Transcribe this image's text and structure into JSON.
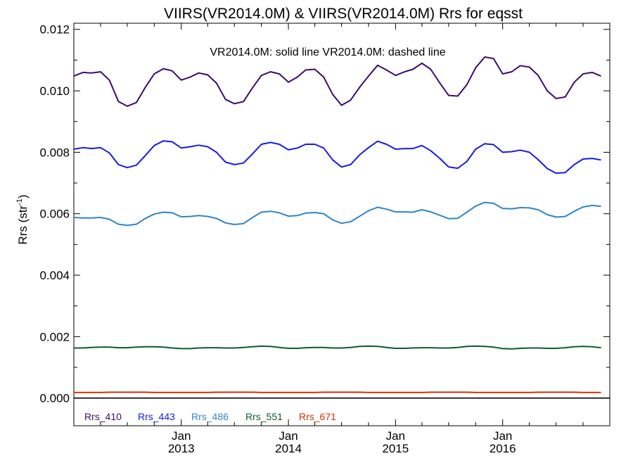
{
  "chart_data": {
    "type": "line",
    "title": "VIIRS(VR2014.0M) & VIIRS(VR2014.0M)  Rrs for eqsst",
    "annotation": "VR2014.0M: solid line   VR2014.0M: dashed line",
    "ylabel_base": "Rrs (str",
    "ylabel_exp": "-1",
    "ylabel_close": ")",
    "ylim": [
      -0.0009,
      0.0122
    ],
    "y_ticks": [
      "0.000",
      "0.002",
      "0.004",
      "0.006",
      "0.008",
      "0.010",
      "0.012"
    ],
    "xlim": [
      "2012-01-01",
      "2016-12-31"
    ],
    "x_ticks": [
      {
        "date": "2013-01-01",
        "month": "Jan",
        "year": "2013"
      },
      {
        "date": "2014-01-01",
        "month": "Jan",
        "year": "2014"
      },
      {
        "date": "2015-01-01",
        "month": "Jan",
        "year": "2015"
      },
      {
        "date": "2016-01-01",
        "month": "Jan",
        "year": "2016"
      }
    ],
    "x": [
      "2012-01-01",
      "2012-02-01",
      "2012-03-01",
      "2012-04-01",
      "2012-05-01",
      "2012-06-01",
      "2012-07-01",
      "2012-08-01",
      "2012-09-01",
      "2012-10-01",
      "2012-11-01",
      "2012-12-01",
      "2013-01-01",
      "2013-02-01",
      "2013-03-01",
      "2013-04-01",
      "2013-05-01",
      "2013-06-01",
      "2013-07-01",
      "2013-08-01",
      "2013-09-01",
      "2013-10-01",
      "2013-11-01",
      "2013-12-01",
      "2014-01-01",
      "2014-02-01",
      "2014-03-01",
      "2014-04-01",
      "2014-05-01",
      "2014-06-01",
      "2014-07-01",
      "2014-08-01",
      "2014-09-01",
      "2014-10-01",
      "2014-11-01",
      "2014-12-01",
      "2015-01-01",
      "2015-02-01",
      "2015-03-01",
      "2015-04-01",
      "2015-05-01",
      "2015-06-01",
      "2015-07-01",
      "2015-08-01",
      "2015-09-01",
      "2015-10-01",
      "2015-11-01",
      "2015-12-01",
      "2016-01-01",
      "2016-02-01",
      "2016-03-01",
      "2016-04-01",
      "2016-05-01",
      "2016-06-01",
      "2016-07-01",
      "2016-08-01",
      "2016-09-01",
      "2016-10-01",
      "2016-11-01",
      "2016-12-01"
    ],
    "series": [
      {
        "name": "Rrs_410",
        "color": "#3d0a6e",
        "values": [
          0.01048,
          0.0106,
          0.01058,
          0.01062,
          0.01035,
          0.00965,
          0.0095,
          0.00962,
          0.01012,
          0.01055,
          0.01072,
          0.01065,
          0.01035,
          0.01045,
          0.01058,
          0.01052,
          0.01025,
          0.00972,
          0.00958,
          0.00965,
          0.0101,
          0.0105,
          0.01062,
          0.01055,
          0.01028,
          0.01045,
          0.01068,
          0.0107,
          0.01045,
          0.00988,
          0.00953,
          0.0097,
          0.01012,
          0.01048,
          0.01083,
          0.01068,
          0.0105,
          0.01062,
          0.0107,
          0.0109,
          0.0107,
          0.01025,
          0.00985,
          0.00983,
          0.0102,
          0.01075,
          0.0111,
          0.01105,
          0.01055,
          0.01062,
          0.01082,
          0.01077,
          0.0105,
          0.01,
          0.00975,
          0.0098,
          0.01028,
          0.01055,
          0.0106,
          0.01048
        ]
      },
      {
        "name": "Rrs_443",
        "color": "#1a1ae6",
        "values": [
          0.0081,
          0.00815,
          0.00812,
          0.00815,
          0.00798,
          0.0076,
          0.0075,
          0.00758,
          0.0079,
          0.00822,
          0.00837,
          0.00834,
          0.00814,
          0.00818,
          0.00823,
          0.00818,
          0.008,
          0.00768,
          0.0076,
          0.00765,
          0.00795,
          0.00826,
          0.00832,
          0.00826,
          0.00808,
          0.00814,
          0.00826,
          0.00826,
          0.00814,
          0.00775,
          0.00752,
          0.0076,
          0.00792,
          0.00815,
          0.00836,
          0.00826,
          0.0081,
          0.00812,
          0.00812,
          0.00822,
          0.00805,
          0.0078,
          0.00752,
          0.00748,
          0.0077,
          0.0081,
          0.00828,
          0.00825,
          0.008,
          0.00802,
          0.00807,
          0.008,
          0.00776,
          0.00747,
          0.00732,
          0.00734,
          0.0076,
          0.00778,
          0.0078,
          0.00775
        ]
      },
      {
        "name": "Rrs_486",
        "color": "#2e86c8",
        "values": [
          0.00588,
          0.00586,
          0.00586,
          0.00588,
          0.00582,
          0.00566,
          0.00562,
          0.00566,
          0.00585,
          0.00599,
          0.00605,
          0.00603,
          0.0059,
          0.00591,
          0.00594,
          0.00591,
          0.00585,
          0.0057,
          0.00565,
          0.00568,
          0.00588,
          0.00605,
          0.00608,
          0.00603,
          0.00592,
          0.00594,
          0.00602,
          0.00604,
          0.006,
          0.0058,
          0.00569,
          0.00574,
          0.00592,
          0.0061,
          0.00621,
          0.00615,
          0.00606,
          0.00606,
          0.00605,
          0.00613,
          0.00606,
          0.00595,
          0.00584,
          0.00585,
          0.00605,
          0.00625,
          0.00637,
          0.00634,
          0.00617,
          0.00616,
          0.0062,
          0.00619,
          0.00613,
          0.00597,
          0.00589,
          0.00591,
          0.00608,
          0.00622,
          0.00627,
          0.00624
        ]
      },
      {
        "name": "Rrs_551",
        "color": "#0d5c2e",
        "values": [
          0.00163,
          0.00163,
          0.00165,
          0.00166,
          0.00166,
          0.00164,
          0.00164,
          0.00166,
          0.00167,
          0.00167,
          0.00166,
          0.00163,
          0.00161,
          0.00161,
          0.00163,
          0.00164,
          0.00164,
          0.00163,
          0.00163,
          0.00165,
          0.00167,
          0.00169,
          0.00168,
          0.00165,
          0.00162,
          0.00162,
          0.00164,
          0.00165,
          0.00165,
          0.00163,
          0.00163,
          0.00165,
          0.00168,
          0.00169,
          0.00168,
          0.00165,
          0.00162,
          0.00162,
          0.00163,
          0.00164,
          0.00164,
          0.00163,
          0.00163,
          0.00165,
          0.00168,
          0.00169,
          0.00168,
          0.00166,
          0.00161,
          0.0016,
          0.00162,
          0.00163,
          0.00163,
          0.00162,
          0.00162,
          0.00164,
          0.00167,
          0.00168,
          0.00167,
          0.00164
        ]
      },
      {
        "name": "Rrs_671",
        "color": "#cc3300",
        "values": [
          0.00018,
          0.00018,
          0.00018,
          0.00018,
          0.00019,
          0.00019,
          0.00019,
          0.00019,
          0.00019,
          0.00018,
          0.00018,
          0.00018,
          0.00018,
          0.00018,
          0.00018,
          0.00018,
          0.00019,
          0.00019,
          0.00019,
          0.00019,
          0.00019,
          0.00018,
          0.00018,
          0.00018,
          0.00018,
          0.00018,
          0.00018,
          0.00018,
          0.00019,
          0.00019,
          0.00019,
          0.00019,
          0.00019,
          0.00018,
          0.00018,
          0.00018,
          0.00018,
          0.00018,
          0.00018,
          0.00018,
          0.00019,
          0.00019,
          0.00019,
          0.00019,
          0.00019,
          0.00018,
          0.00018,
          0.00018,
          0.00018,
          0.00018,
          0.00018,
          0.00018,
          0.00019,
          0.00019,
          0.00019,
          0.00019,
          0.00019,
          0.00018,
          0.00018,
          0.00018
        ]
      }
    ],
    "zero_line": {
      "value": 0.0,
      "color": "#000000"
    },
    "grid": false,
    "legend_placement": "bottom-left inside plot"
  }
}
